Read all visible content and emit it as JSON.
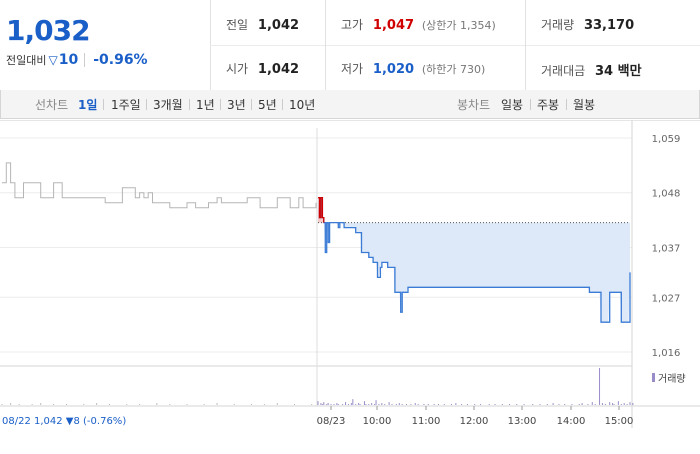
{
  "summary": {
    "current_price": "1,032",
    "change_label": "전일대비",
    "change_amount": "10",
    "change_percent": "-0.96%",
    "prev_close_label": "전일",
    "prev_close": "1,042",
    "open_label": "시가",
    "open": "1,042",
    "high_label": "고가",
    "high": "1,047",
    "upper_limit": "(상한가 1,354)",
    "low_label": "저가",
    "low": "1,020",
    "lower_limit": "(하한가 730)",
    "volume_label": "거래량",
    "volume": "33,170",
    "value_label": "거래대금",
    "value": "34 백만"
  },
  "toolbar": {
    "line_label": "선차트",
    "line_ranges": [
      "1일",
      "1주일",
      "3개월",
      "1년",
      "3년",
      "5년",
      "10년"
    ],
    "active_range": "1일",
    "candle_label": "봉차트",
    "candle_ranges": [
      "일봉",
      "주봉",
      "월봉"
    ]
  },
  "colors": {
    "up": "#d10000",
    "down": "#1a5fc8",
    "prev_line": "#b5b5b5",
    "fill": "#dde9f8"
  },
  "chart_data": {
    "type": "line",
    "prev_day_info": "08/22  1,042 ▼8 (-0.76%)",
    "y_ticks": [
      "1,059",
      "1,048",
      "1,037",
      "1,027",
      "1,016"
    ],
    "y_tick_values": [
      1059,
      1048,
      1037,
      1027,
      1016
    ],
    "ylim": [
      1014,
      1061
    ],
    "x_ticks": [
      "08/23",
      "10:00",
      "11:00",
      "12:00",
      "13:00",
      "14:00",
      "15:00"
    ],
    "reference_line": 1042,
    "volume_legend": "거래량",
    "prev_series": {
      "name": "08/22",
      "values": [
        1050,
        1054,
        1050,
        1047,
        1047,
        1050,
        1050,
        1050,
        1050,
        1047,
        1047,
        1047,
        1050,
        1050,
        1047,
        1047,
        1047,
        1047,
        1047,
        1047,
        1047,
        1047,
        1047,
        1047,
        1046,
        1046,
        1046,
        1046,
        1049,
        1049,
        1049,
        1047,
        1048,
        1047,
        1048,
        1046,
        1046,
        1046,
        1046,
        1045,
        1045,
        1045,
        1045,
        1046,
        1046,
        1045,
        1045,
        1045,
        1046,
        1046,
        1047,
        1046,
        1046,
        1046,
        1046,
        1046,
        1046,
        1047,
        1047,
        1047,
        1045,
        1045,
        1045,
        1045,
        1047,
        1047,
        1047,
        1045,
        1045,
        1047,
        1045,
        1045,
        1045,
        1046
      ]
    },
    "today_series": {
      "name": "08/23",
      "values": [
        1047,
        1043,
        1047,
        1043,
        1042,
        1036,
        1042,
        1038,
        1042,
        1042,
        1042,
        1042,
        1042,
        1042,
        1041,
        1042,
        1042,
        1042,
        1041,
        1041,
        1041,
        1041,
        1041,
        1041,
        1041,
        1041,
        1040,
        1040,
        1040,
        1040,
        1036,
        1036,
        1036,
        1036,
        1036,
        1035,
        1035,
        1035,
        1034,
        1034,
        1034,
        1031,
        1031,
        1033,
        1034,
        1034,
        1034,
        1034,
        1033,
        1033,
        1033,
        1033,
        1033,
        1028,
        1028,
        1028,
        1028,
        1024,
        1028,
        1028,
        1028,
        1028,
        1029,
        1029,
        1029,
        1029,
        1029,
        1029,
        1029,
        1029,
        1029,
        1029,
        1029,
        1029,
        1029,
        1029,
        1029,
        1029,
        1029,
        1029,
        1029,
        1029,
        1029,
        1029,
        1029,
        1029,
        1029,
        1029,
        1029,
        1029,
        1029,
        1029,
        1029,
        1029,
        1029,
        1029,
        1029,
        1029,
        1029,
        1029,
        1029,
        1029,
        1029,
        1029,
        1029,
        1029,
        1029,
        1029,
        1029,
        1029,
        1029,
        1029,
        1029,
        1029,
        1029,
        1029,
        1029,
        1029,
        1029,
        1029,
        1029,
        1029,
        1029,
        1029,
        1029,
        1029,
        1029,
        1029,
        1029,
        1029,
        1029,
        1029,
        1029,
        1029,
        1029,
        1029,
        1029,
        1029,
        1029,
        1029,
        1029,
        1029,
        1029,
        1029,
        1029,
        1029,
        1029,
        1029,
        1029,
        1029,
        1029,
        1029,
        1029,
        1029,
        1029,
        1029,
        1029,
        1029,
        1029,
        1029,
        1029,
        1029,
        1029,
        1029,
        1029,
        1029,
        1029,
        1029,
        1029,
        1029,
        1029,
        1029,
        1029,
        1029,
        1029,
        1029,
        1029,
        1029,
        1029,
        1029,
        1029,
        1029,
        1029,
        1029,
        1029,
        1029,
        1029,
        1028,
        1028,
        1028,
        1028,
        1028,
        1028,
        1028,
        1028,
        1022,
        1022,
        1022,
        1022,
        1022,
        1022,
        1028,
        1028,
        1028,
        1028,
        1028,
        1028,
        1028,
        1028,
        1022,
        1022,
        1022,
        1022,
        1022,
        1022,
        1032
      ]
    },
    "volume_today": [
      4,
      0,
      2,
      1,
      3,
      0,
      1,
      2,
      0,
      1,
      0,
      1,
      0,
      2,
      1,
      0,
      0,
      1,
      0,
      3,
      0,
      1,
      0,
      2,
      6,
      0,
      1,
      0,
      2,
      1,
      0,
      0,
      4,
      1,
      0,
      1,
      0,
      2,
      0,
      1,
      5,
      0,
      1,
      0,
      2,
      0,
      1,
      0,
      0,
      3,
      0,
      1,
      0,
      0,
      1,
      0,
      2,
      0,
      1,
      0,
      0,
      1,
      0,
      0,
      1,
      0,
      0,
      2,
      0,
      1,
      0,
      0,
      0,
      1,
      0,
      0,
      1,
      0,
      0,
      0,
      1,
      0,
      0,
      1,
      0,
      0,
      0,
      1,
      0,
      0,
      0,
      0,
      1,
      0,
      0,
      2,
      0,
      0,
      0,
      1,
      0,
      0,
      0,
      1,
      0,
      0,
      0,
      0,
      1,
      0,
      0,
      0,
      1,
      0,
      0,
      0,
      0,
      0,
      1,
      0,
      0,
      0,
      1,
      0,
      0,
      0,
      0,
      1,
      0,
      0,
      0,
      0,
      1,
      0,
      0,
      0,
      0,
      1,
      0,
      0,
      0,
      0,
      1,
      0,
      0,
      0,
      0,
      0,
      1,
      0,
      0,
      0,
      0,
      1,
      0,
      0,
      0,
      0,
      1,
      0,
      0,
      0,
      2,
      0,
      0,
      0,
      1,
      0,
      0,
      0,
      1,
      0,
      0,
      0,
      0,
      1,
      0,
      0,
      0,
      0,
      1,
      0,
      2,
      0,
      0,
      0,
      1,
      0,
      0,
      3,
      0,
      1,
      0,
      0,
      38,
      0,
      2,
      0,
      1,
      0,
      0,
      3,
      0,
      2,
      1,
      0,
      0,
      4,
      0,
      1,
      0,
      2,
      0,
      1,
      0,
      3,
      0,
      2
    ],
    "volume_prev": [
      1,
      0,
      2,
      0,
      1,
      0,
      0,
      1,
      0,
      2,
      0,
      0,
      1,
      0,
      0,
      1,
      0,
      0,
      0,
      1,
      0,
      0,
      2,
      0,
      0,
      1,
      0,
      0,
      0,
      1,
      0,
      0,
      1,
      0,
      0,
      0,
      2,
      0,
      0,
      1,
      0,
      0,
      0,
      1,
      0,
      0,
      0,
      1,
      0,
      0,
      2,
      0,
      0,
      0,
      1,
      0,
      0,
      0,
      1,
      0,
      0,
      1,
      0,
      0,
      2,
      0,
      0,
      0,
      1,
      0,
      0,
      0,
      1,
      0
    ]
  }
}
